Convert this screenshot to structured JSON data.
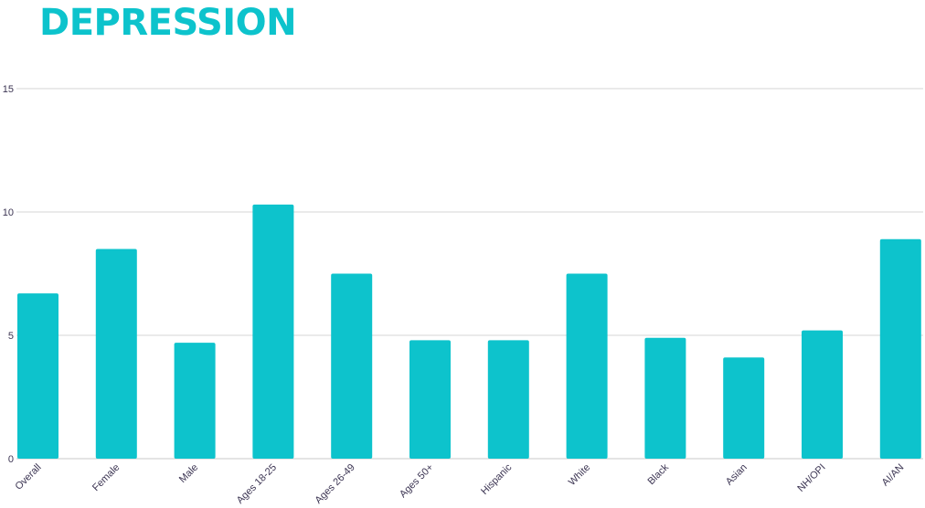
{
  "chart_data": {
    "type": "bar",
    "title": "DEPRESSION",
    "xlabel": "",
    "ylabel": "",
    "ylim": [
      0,
      15
    ],
    "yticks": [
      0,
      5,
      10,
      15
    ],
    "grid": true,
    "categories": [
      "Overall",
      "Female",
      "Male",
      "Ages 18-25",
      "Ages 26-49",
      "Ages 50+",
      "Hispanic",
      "White",
      "Black",
      "Asian",
      "NH/OPI",
      "AI/AN"
    ],
    "values": [
      6.7,
      8.5,
      4.7,
      10.3,
      7.5,
      4.8,
      4.8,
      7.5,
      4.9,
      4.1,
      5.2,
      8.9
    ],
    "bar_color": "#0dc3cc",
    "title_color": "#0dc3cc"
  }
}
